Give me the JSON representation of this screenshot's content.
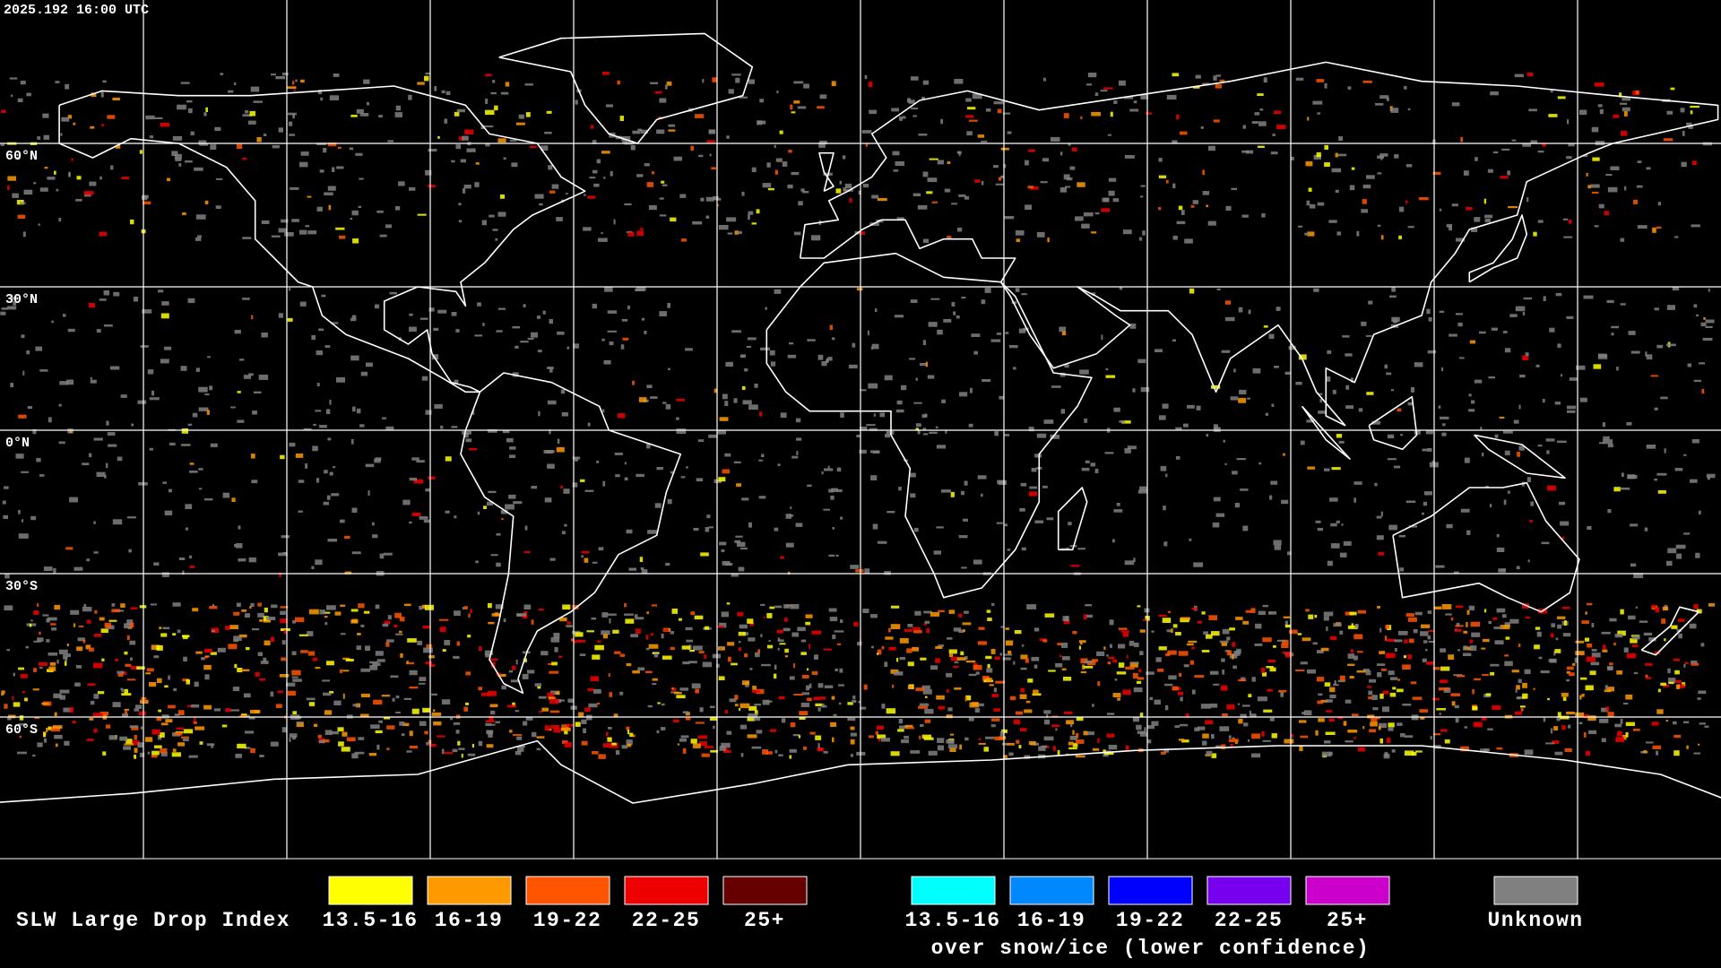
{
  "timestamp": "2025.192 16:00 UTC",
  "latitude_labels": [
    "60°N",
    "30°N",
    "0°N",
    "30°S",
    "60°S"
  ],
  "legend": {
    "title": "SLW Large Drop Index",
    "groups": [
      {
        "items": [
          {
            "label": "13.5-16",
            "color": "#ffff00"
          },
          {
            "label": "16-19",
            "color": "#ff9900"
          },
          {
            "label": "19-22",
            "color": "#ff5500"
          },
          {
            "label": "22-25",
            "color": "#ee0000"
          },
          {
            "label": "25+",
            "color": "#660000"
          }
        ]
      },
      {
        "items": [
          {
            "label": "13.5-16",
            "color": "#00ffff"
          },
          {
            "label": "16-19",
            "color": "#0088ff"
          },
          {
            "label": "19-22",
            "color": "#0000ff"
          },
          {
            "label": "22-25",
            "color": "#7700ee"
          },
          {
            "label": "25+",
            "color": "#cc00cc"
          }
        ],
        "caption": "over snow/ice (lower confidence)"
      },
      {
        "items": [
          {
            "label": "Unknown",
            "color": "#808080"
          }
        ]
      }
    ]
  }
}
